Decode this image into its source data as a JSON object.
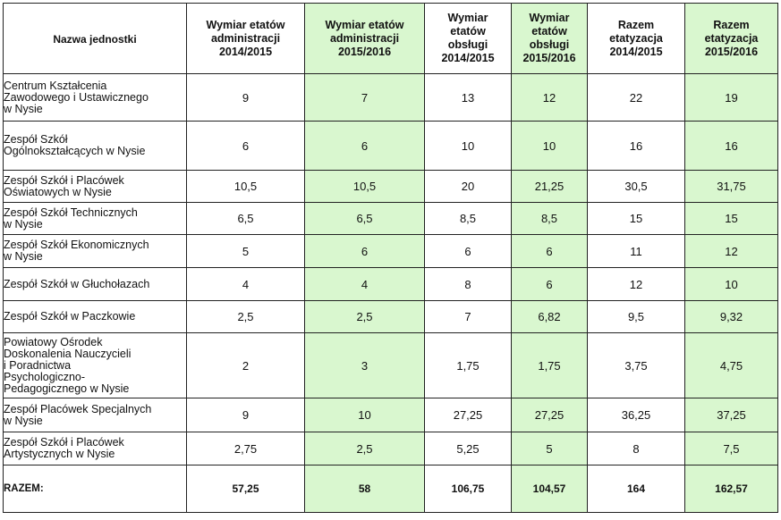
{
  "table": {
    "headers": [
      "Nazwa jednostki",
      "Wymiar etatów\nadministracji\n2014/2015",
      "Wymiar etatów\nadministracji\n2015/2016",
      "Wymiar\netatów\nobsługi\n2014/2015",
      "Wymiar\netatów\nobsługi\n2015/2016",
      "Razem\netatyzacja\n2014/2015",
      "Razem\netatyzacja\n2015/2016"
    ],
    "colors": {
      "green_column": "#d9f7cf",
      "border": "#222222"
    },
    "rows": [
      {
        "name": "Centrum Kształcenia\nZawodowego i Ustawicznego\n   w   Nysie",
        "values": [
          "9",
          "7",
          "13",
          "12",
          "22",
          "19"
        ]
      },
      {
        "name": "Zespół Szkół\nOgólnokształcących w   Nysie",
        "values": [
          "6",
          "6",
          "10",
          "10",
          "16",
          "16"
        ]
      },
      {
        "name": "Zespół Szkół i Placówek\nOświatowych w Nysie",
        "values": [
          "10,5",
          "10,5",
          "20",
          "21,25",
          "30,5",
          "31,75"
        ]
      },
      {
        "name": "Zespół Szkół Technicznych\n    w  Nysie",
        "values": [
          "6,5",
          "6,5",
          "8,5",
          "8,5",
          "15",
          "15"
        ]
      },
      {
        "name": "Zespół Szkół Ekonomicznych\n      w Nysie",
        "values": [
          "5",
          "6",
          "6",
          "6",
          "11",
          "12"
        ]
      },
      {
        "name": "Zespół Szkół w Głuchołazach",
        "values": [
          "4",
          "4",
          "8",
          "6",
          "12",
          "10"
        ]
      },
      {
        "name": "Zespół Szkół w Paczkowie",
        "values": [
          "2,5",
          "2,5",
          "7",
          "6,82",
          "9,5",
          "9,32"
        ]
      },
      {
        "name": "Powiatowy Ośrodek\nDoskonalenia Nauczycieli\n  i Poradnictwa\nPsychologiczno-\nPedagogicznego w Nysie",
        "values": [
          "2",
          "3",
          "1,75",
          "1,75",
          "3,75",
          "4,75"
        ]
      },
      {
        "name": "Zespół Placówek Specjalnych\nw Nysie",
        "values": [
          "9",
          "10",
          "27,25",
          "27,25",
          "36,25",
          "37,25"
        ]
      },
      {
        "name": "Zespół Szkół i Placówek\nArtystycznych w Nysie",
        "values": [
          "2,75",
          "2,5",
          "5,25",
          "5",
          "8",
          "7,5"
        ]
      }
    ],
    "total": {
      "name": "RAZEM:",
      "values": [
        "57,25",
        "58",
        "106,75",
        "104,57",
        "164",
        "162,57"
      ]
    }
  }
}
